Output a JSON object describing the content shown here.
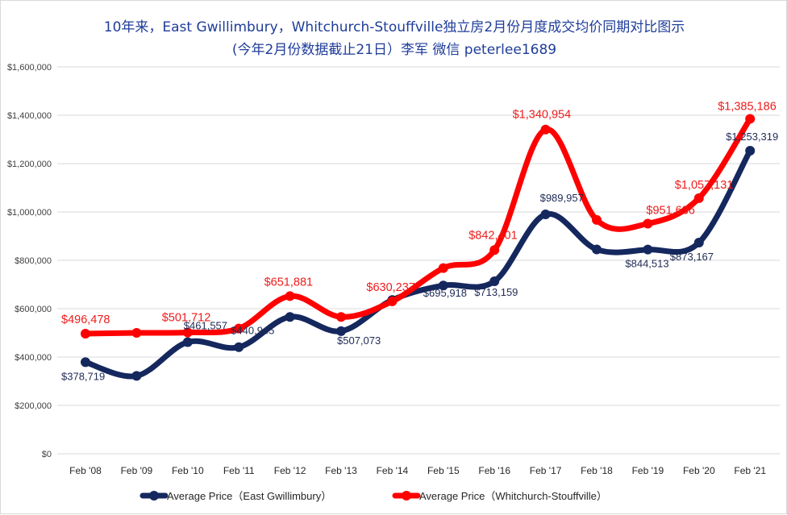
{
  "chart_data": {
    "type": "line",
    "title_line1": "10年来，East Gwillimbury，Whitchurch-Stouffville独立房2月份月度成交均价同期对比图示",
    "title_line2": "(今年2月份数据截止21日）李军 微信 peterlee1689",
    "categories": [
      "Feb '08",
      "Feb '09",
      "Feb '10",
      "Feb '11",
      "Feb '12",
      "Feb '13",
      "Feb '14",
      "Feb '15",
      "Feb '16",
      "Feb '17",
      "Feb '18",
      "Feb '19",
      "Feb '20",
      "Feb '21"
    ],
    "ylim": [
      0,
      1600000
    ],
    "y_ticks": [
      0,
      200000,
      400000,
      600000,
      800000,
      1000000,
      1200000,
      1400000,
      1600000
    ],
    "y_tick_labels": [
      "$0",
      "$200,000",
      "$400,000",
      "$600,000",
      "$800,000",
      "$1,000,000",
      "$1,200,000",
      "$1,400,000",
      "$1,600,000"
    ],
    "grid": true,
    "legend_position": "bottom",
    "series": [
      {
        "name": "Average Price（East Gwillimbury）",
        "color": "#14285e",
        "values": [
          378719,
          322000,
          461557,
          440945,
          566000,
          507073,
          636000,
          695918,
          713159,
          989957,
          845000,
          844513,
          873167,
          1253319
        ],
        "labels": [
          "$378,719",
          "",
          "$461,557",
          "$440,945",
          "",
          "$507,073",
          "",
          "$695,918",
          "$713,159",
          "$989,957",
          "",
          "$844,513",
          "$873,167",
          "$1,253,319"
        ]
      },
      {
        "name": "Average Price（Whitchurch-Stouffville）",
        "color": "#ff0000",
        "values": [
          496478,
          500000,
          501712,
          518000,
          651881,
          566000,
          630237,
          768000,
          842401,
          1340954,
          967000,
          951636,
          1057131,
          1385186
        ],
        "labels": [
          "$496,478",
          "",
          "$501,712",
          "",
          "$651,881",
          "",
          "$630,237",
          "",
          "$842,401",
          "$1,340,954",
          "",
          "$951,636",
          "$1,057,131",
          "$1,385,186"
        ]
      }
    ]
  }
}
